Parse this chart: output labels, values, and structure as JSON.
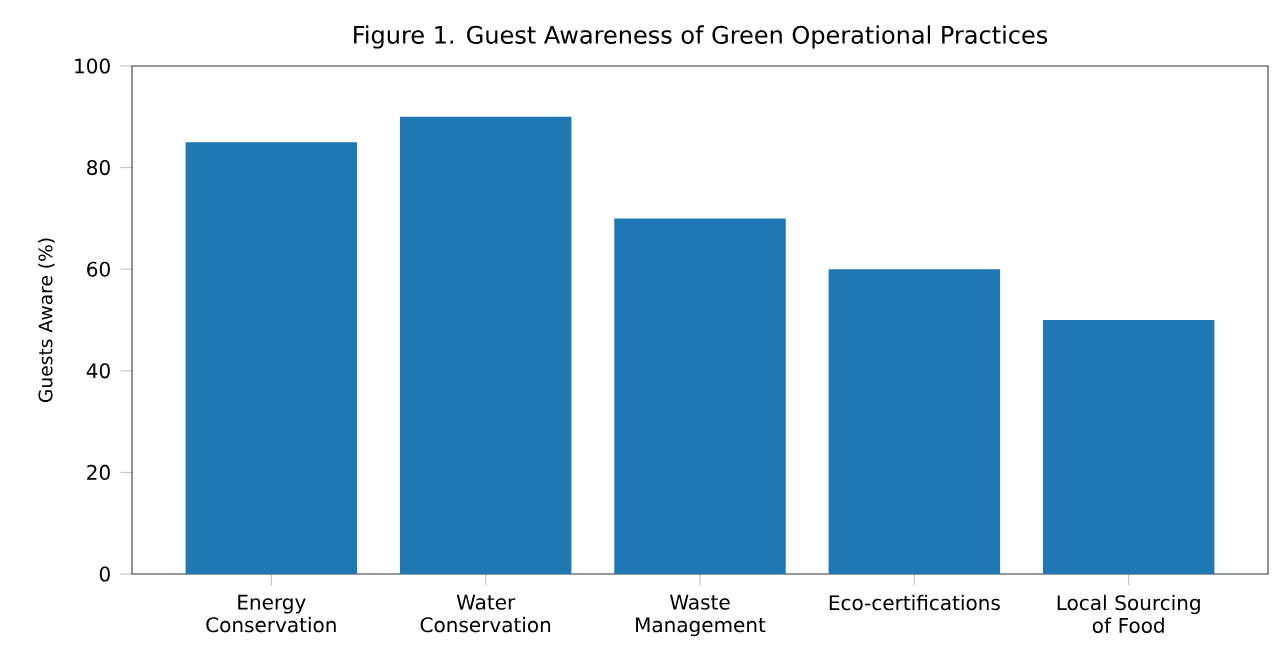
{
  "chart_data": {
    "type": "bar",
    "title": "Figure 1. Guest Awareness of Green Operational Practices",
    "ylabel": "Guests Aware (%)",
    "categories": [
      "Energy Conservation",
      "Water Conservation",
      "Waste Management",
      "Eco-certifications",
      "Local Sourcing of Food"
    ],
    "values": [
      85,
      90,
      70,
      60,
      50
    ],
    "color": "#1f77b4",
    "ylim": [
      0,
      100
    ],
    "yticks": [
      0,
      20,
      40,
      60,
      80,
      100
    ]
  }
}
